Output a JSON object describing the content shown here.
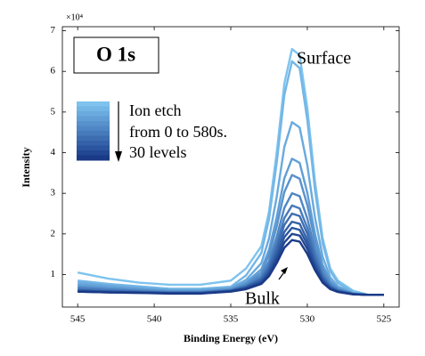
{
  "chart_data": {
    "type": "line",
    "xlabel": "Binding Energy (eV)",
    "ylabel": "Intensity",
    "y_multiplier": "×10⁴",
    "annotations": {
      "panel": "O 1s",
      "surface": "Surface",
      "bulk": "Bulk",
      "legend_lines": [
        "Ion etch",
        "from 0 to 580s.",
        "30 levels"
      ]
    },
    "xlim": [
      546,
      524
    ],
    "xticks": [
      545,
      540,
      535,
      530,
      525
    ],
    "ylim": [
      0.2,
      7.1
    ],
    "yticks": [
      1,
      2,
      3,
      4,
      5,
      6,
      7
    ],
    "x": [
      545,
      543,
      541,
      539,
      537,
      535,
      534,
      533,
      532.5,
      532,
      531.5,
      531,
      530.5,
      530,
      529.5,
      529,
      528.5,
      528,
      527,
      526,
      525
    ],
    "series": [
      {
        "color": "#7ec3ee",
        "values": [
          1.05,
          0.9,
          0.8,
          0.75,
          0.75,
          0.85,
          1.15,
          1.7,
          2.55,
          4.0,
          5.7,
          6.55,
          6.4,
          5.1,
          3.3,
          1.9,
          1.15,
          0.85,
          0.6,
          0.5,
          0.5
        ]
      },
      {
        "color": "#74b6e6",
        "values": [
          0.85,
          0.77,
          0.71,
          0.65,
          0.65,
          0.7,
          0.98,
          1.53,
          2.37,
          3.75,
          5.42,
          6.25,
          6.08,
          4.81,
          3.09,
          1.77,
          1.08,
          0.79,
          0.56,
          0.5,
          0.5
        ]
      },
      {
        "color": "#6aaade",
        "values": [
          0.8,
          0.73,
          0.67,
          0.62,
          0.62,
          0.67,
          0.87,
          1.28,
          1.89,
          2.91,
          4.14,
          4.75,
          4.62,
          3.69,
          2.41,
          1.44,
          0.93,
          0.71,
          0.54,
          0.5,
          0.5
        ]
      },
      {
        "color": "#619ed6",
        "values": [
          0.75,
          0.69,
          0.65,
          0.6,
          0.6,
          0.65,
          0.81,
          1.13,
          1.61,
          2.41,
          3.37,
          3.85,
          3.75,
          3.01,
          2.01,
          1.24,
          0.84,
          0.67,
          0.53,
          0.5,
          0.5
        ]
      },
      {
        "color": "#5892cd",
        "values": [
          0.7,
          0.65,
          0.62,
          0.58,
          0.58,
          0.63,
          0.77,
          1.05,
          1.48,
          2.18,
          3.03,
          3.45,
          3.36,
          2.71,
          1.83,
          1.15,
          0.8,
          0.65,
          0.53,
          0.5,
          0.5
        ]
      },
      {
        "color": "#4f86c4",
        "values": [
          0.68,
          0.64,
          0.6,
          0.57,
          0.57,
          0.62,
          0.74,
          0.98,
          1.33,
          1.93,
          2.64,
          3.0,
          2.93,
          2.38,
          1.63,
          1.05,
          0.75,
          0.63,
          0.53,
          0.5,
          0.5
        ]
      },
      {
        "color": "#467abb",
        "values": [
          0.65,
          0.61,
          0.58,
          0.56,
          0.56,
          0.61,
          0.71,
          0.92,
          1.24,
          1.76,
          2.39,
          2.7,
          2.63,
          2.15,
          1.49,
          0.98,
          0.72,
          0.61,
          0.52,
          0.5,
          0.5
        ]
      },
      {
        "color": "#3d6db1",
        "values": [
          0.62,
          0.59,
          0.57,
          0.55,
          0.55,
          0.6,
          0.7,
          0.89,
          1.17,
          1.65,
          2.22,
          2.5,
          2.44,
          2.0,
          1.4,
          0.94,
          0.7,
          0.6,
          0.52,
          0.5,
          0.5
        ]
      },
      {
        "color": "#3461a8",
        "values": [
          0.6,
          0.58,
          0.57,
          0.55,
          0.55,
          0.6,
          0.69,
          0.86,
          1.11,
          1.54,
          2.05,
          2.3,
          2.25,
          1.85,
          1.31,
          0.9,
          0.68,
          0.59,
          0.52,
          0.5,
          0.5
        ]
      },
      {
        "color": "#2b559e",
        "values": [
          0.6,
          0.58,
          0.56,
          0.54,
          0.54,
          0.59,
          0.67,
          0.82,
          1.06,
          1.45,
          1.92,
          2.15,
          2.1,
          1.74,
          1.24,
          0.86,
          0.67,
          0.58,
          0.52,
          0.5,
          0.5
        ]
      },
      {
        "color": "#224893",
        "values": [
          0.58,
          0.56,
          0.55,
          0.54,
          0.54,
          0.59,
          0.66,
          0.8,
          1.01,
          1.37,
          1.79,
          2.0,
          1.96,
          1.63,
          1.18,
          0.83,
          0.65,
          0.58,
          0.52,
          0.5,
          0.5
        ]
      },
      {
        "color": "#1a3a87",
        "values": [
          0.58,
          0.56,
          0.55,
          0.53,
          0.53,
          0.58,
          0.64,
          0.77,
          0.96,
          1.28,
          1.66,
          1.85,
          1.81,
          1.51,
          1.11,
          0.8,
          0.64,
          0.57,
          0.51,
          0.5,
          0.5
        ]
      }
    ]
  }
}
